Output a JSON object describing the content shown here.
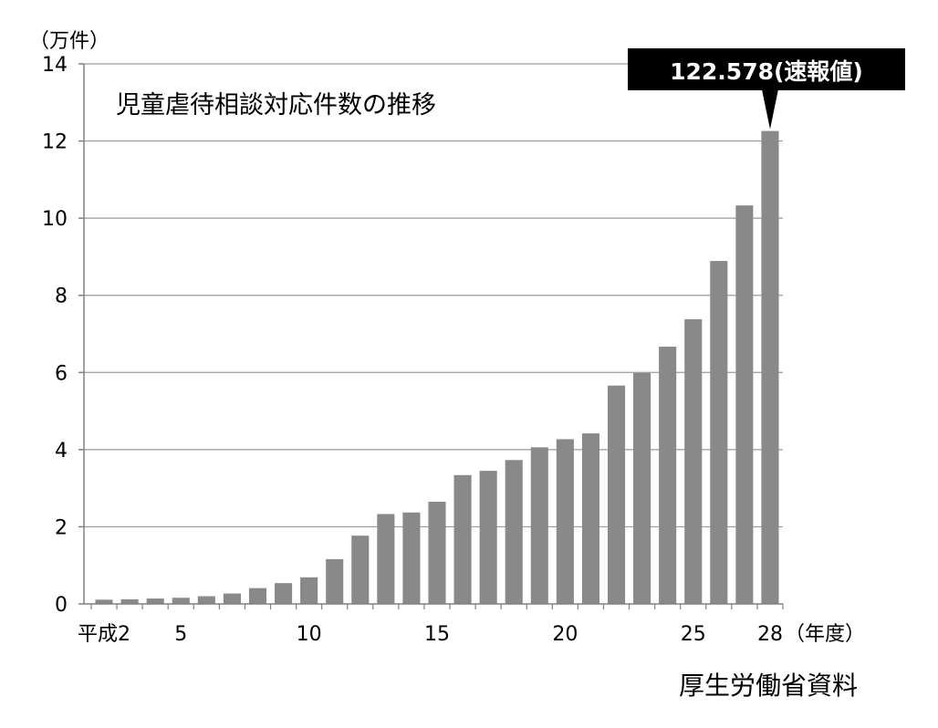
{
  "chart_data": {
    "type": "bar",
    "title": "児童虐待相談対応件数の推移",
    "ylabel": "（万件）",
    "xlabel": "（年度）",
    "ylim": [
      0,
      14
    ],
    "yticks": [
      0,
      2,
      4,
      6,
      8,
      10,
      12,
      14
    ],
    "grid": true,
    "bar_color": "#898989",
    "categories": [
      2,
      3,
      4,
      5,
      6,
      7,
      8,
      9,
      10,
      11,
      12,
      13,
      14,
      15,
      16,
      17,
      18,
      19,
      20,
      21,
      22,
      23,
      24,
      25,
      26,
      27,
      28
    ],
    "xtick_labels": [
      {
        "category": 2,
        "label": "平成2"
      },
      {
        "category": 5,
        "label": "5"
      },
      {
        "category": 10,
        "label": "10"
      },
      {
        "category": 15,
        "label": "15"
      },
      {
        "category": 20,
        "label": "20"
      },
      {
        "category": 25,
        "label": "25"
      },
      {
        "category": 28,
        "label": "28"
      }
    ],
    "values": [
      0.11,
      0.12,
      0.14,
      0.16,
      0.2,
      0.27,
      0.41,
      0.54,
      0.69,
      1.16,
      1.77,
      2.33,
      2.37,
      2.65,
      3.34,
      3.45,
      3.73,
      4.06,
      4.27,
      4.42,
      5.66,
      5.99,
      6.67,
      7.38,
      8.89,
      10.33,
      12.26
    ],
    "annotation": {
      "category": 28,
      "text": "122.578(速報値)"
    },
    "source": "厚生労働省資料"
  }
}
